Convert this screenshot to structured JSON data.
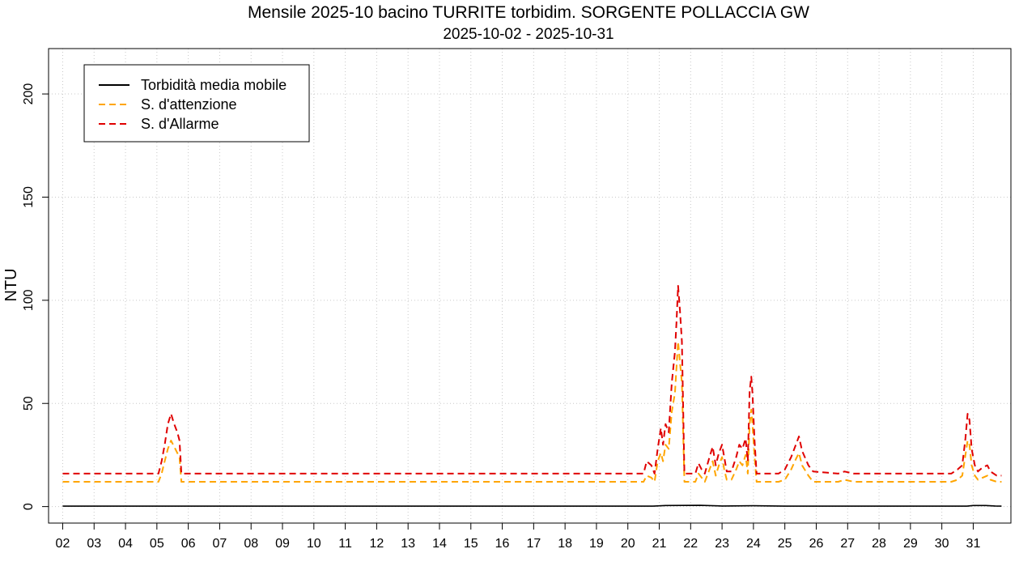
{
  "chart_data": {
    "type": "line",
    "title": "Mensile 2025-10 bacino TURRITE torbidim. SORGENTE POLLACCIA GW",
    "subtitle": "2025-10-02 - 2025-10-31",
    "xlabel": "",
    "ylabel": "NTU",
    "ylim": [
      -8,
      222
    ],
    "xlim": [
      0.55,
      31.2
    ],
    "yticks": [
      0,
      50,
      100,
      150,
      200
    ],
    "grid": true,
    "legend_position": "top-left",
    "x_tick_values": [
      1,
      2,
      3,
      4,
      5,
      6,
      7,
      8,
      9,
      10,
      11,
      12,
      13,
      14,
      15,
      16,
      17,
      18,
      19,
      20,
      21,
      22,
      23,
      24,
      25,
      26,
      27,
      28,
      29,
      30
    ],
    "x_tick_labels": [
      "02",
      "03",
      "04",
      "05",
      "06",
      "07",
      "08",
      "09",
      "10",
      "11",
      "12",
      "13",
      "14",
      "15",
      "16",
      "17",
      "18",
      "19",
      "20",
      "21",
      "22",
      "23",
      "24",
      "25",
      "26",
      "27",
      "28",
      "29",
      "30",
      "31"
    ],
    "series": [
      {
        "name": "Torbidità media mobile",
        "color": "#000000",
        "dash": "solid",
        "points": [
          [
            1,
            0.2
          ],
          [
            19.8,
            0.2
          ],
          [
            20.2,
            0.5
          ],
          [
            21.3,
            0.6
          ],
          [
            22.0,
            0.3
          ],
          [
            23.0,
            0.4
          ],
          [
            24.0,
            0.2
          ],
          [
            29.8,
            0.2
          ],
          [
            30.0,
            0.5
          ],
          [
            30.4,
            0.5
          ],
          [
            30.7,
            0.3
          ],
          [
            30.9,
            0.2
          ]
        ]
      },
      {
        "name": "S. d'attenzione",
        "color": "#FFA500",
        "dash": "dashed",
        "points": [
          [
            1,
            12
          ],
          [
            4.05,
            12
          ],
          [
            4.15,
            16
          ],
          [
            4.25,
            22
          ],
          [
            4.35,
            28
          ],
          [
            4.45,
            32
          ],
          [
            4.55,
            29
          ],
          [
            4.65,
            26
          ],
          [
            4.72,
            24
          ],
          [
            4.78,
            12
          ],
          [
            19.5,
            12
          ],
          [
            19.6,
            15
          ],
          [
            19.75,
            14
          ],
          [
            19.85,
            12
          ],
          [
            19.95,
            22
          ],
          [
            20.05,
            26
          ],
          [
            20.12,
            22
          ],
          [
            20.2,
            30
          ],
          [
            20.3,
            28
          ],
          [
            20.4,
            46
          ],
          [
            20.5,
            55
          ],
          [
            20.55,
            68
          ],
          [
            20.6,
            80
          ],
          [
            20.66,
            70
          ],
          [
            20.72,
            60
          ],
          [
            20.8,
            12
          ],
          [
            21.15,
            12
          ],
          [
            21.25,
            16
          ],
          [
            21.35,
            14
          ],
          [
            21.45,
            12
          ],
          [
            21.6,
            18
          ],
          [
            21.7,
            22
          ],
          [
            21.8,
            15
          ],
          [
            21.9,
            20
          ],
          [
            22.0,
            24
          ],
          [
            22.07,
            18
          ],
          [
            22.15,
            13
          ],
          [
            22.3,
            13
          ],
          [
            22.45,
            18
          ],
          [
            22.55,
            22
          ],
          [
            22.65,
            20
          ],
          [
            22.75,
            25
          ],
          [
            22.82,
            16
          ],
          [
            22.88,
            40
          ],
          [
            22.93,
            47
          ],
          [
            22.97,
            40
          ],
          [
            23.03,
            25
          ],
          [
            23.1,
            12
          ],
          [
            23.8,
            12
          ],
          [
            24.0,
            13
          ],
          [
            24.2,
            18
          ],
          [
            24.35,
            23
          ],
          [
            24.45,
            26
          ],
          [
            24.55,
            20
          ],
          [
            24.75,
            15
          ],
          [
            24.9,
            12
          ],
          [
            25.7,
            12
          ],
          [
            25.9,
            13
          ],
          [
            26.2,
            12
          ],
          [
            29.3,
            12
          ],
          [
            29.5,
            13
          ],
          [
            29.65,
            15
          ],
          [
            29.75,
            25
          ],
          [
            29.82,
            32
          ],
          [
            29.88,
            30
          ],
          [
            29.95,
            20
          ],
          [
            30.05,
            15
          ],
          [
            30.15,
            13
          ],
          [
            30.3,
            14
          ],
          [
            30.45,
            15
          ],
          [
            30.55,
            13
          ],
          [
            30.75,
            12
          ],
          [
            30.9,
            12
          ]
        ]
      },
      {
        "name": "S. d'Allarme",
        "color": "#E00000",
        "dash": "dashed",
        "points": [
          [
            1,
            16
          ],
          [
            4.05,
            16
          ],
          [
            4.15,
            22
          ],
          [
            4.25,
            30
          ],
          [
            4.35,
            40
          ],
          [
            4.45,
            45
          ],
          [
            4.55,
            40
          ],
          [
            4.65,
            36
          ],
          [
            4.72,
            32
          ],
          [
            4.78,
            16
          ],
          [
            19.5,
            16
          ],
          [
            19.6,
            22
          ],
          [
            19.75,
            20
          ],
          [
            19.85,
            16
          ],
          [
            19.95,
            28
          ],
          [
            20.05,
            38
          ],
          [
            20.12,
            30
          ],
          [
            20.2,
            40
          ],
          [
            20.3,
            36
          ],
          [
            20.4,
            60
          ],
          [
            20.5,
            75
          ],
          [
            20.55,
            90
          ],
          [
            20.6,
            107
          ],
          [
            20.66,
            95
          ],
          [
            20.72,
            80
          ],
          [
            20.8,
            16
          ],
          [
            21.15,
            16
          ],
          [
            21.25,
            21
          ],
          [
            21.35,
            18
          ],
          [
            21.45,
            16
          ],
          [
            21.6,
            24
          ],
          [
            21.7,
            29
          ],
          [
            21.8,
            20
          ],
          [
            21.9,
            26
          ],
          [
            22.0,
            30
          ],
          [
            22.07,
            24
          ],
          [
            22.15,
            17
          ],
          [
            22.3,
            17
          ],
          [
            22.45,
            24
          ],
          [
            22.55,
            30
          ],
          [
            22.65,
            28
          ],
          [
            22.75,
            33
          ],
          [
            22.82,
            22
          ],
          [
            22.88,
            56
          ],
          [
            22.93,
            63
          ],
          [
            22.97,
            55
          ],
          [
            23.03,
            33
          ],
          [
            23.1,
            16
          ],
          [
            23.8,
            16
          ],
          [
            24.0,
            18
          ],
          [
            24.2,
            24
          ],
          [
            24.35,
            30
          ],
          [
            24.45,
            34
          ],
          [
            24.55,
            27
          ],
          [
            24.75,
            20
          ],
          [
            24.9,
            17
          ],
          [
            25.7,
            16
          ],
          [
            25.9,
            17
          ],
          [
            26.2,
            16
          ],
          [
            29.3,
            16
          ],
          [
            29.5,
            18
          ],
          [
            29.65,
            20
          ],
          [
            29.75,
            33
          ],
          [
            29.82,
            45
          ],
          [
            29.88,
            42
          ],
          [
            29.95,
            28
          ],
          [
            30.05,
            20
          ],
          [
            30.15,
            17
          ],
          [
            30.3,
            19
          ],
          [
            30.45,
            20
          ],
          [
            30.55,
            17
          ],
          [
            30.75,
            15
          ],
          [
            30.9,
            15
          ]
        ]
      }
    ]
  }
}
